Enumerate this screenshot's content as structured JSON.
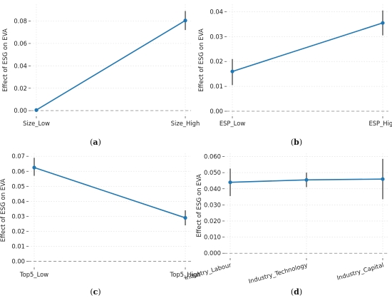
{
  "colors": {
    "line": "#1f77b4",
    "errorbar": "#333333",
    "zero_line": "#888888",
    "grid": "#e4e4e4"
  },
  "chart_data": [
    {
      "type": "line",
      "caption": "a",
      "categories": [
        "Size_Low",
        "Size_High"
      ],
      "values": [
        0.0005,
        0.0805
      ],
      "errors": [
        [
          0.0,
          0.002
        ],
        [
          0.072,
          0.089
        ]
      ],
      "ylabel": "Effect of ESG on EVA",
      "ylim": [
        -0.005,
        0.095
      ],
      "yticks": [
        "0.00",
        "0.02",
        "0.04",
        "0.06",
        "0.08"
      ],
      "reference_line": 0,
      "grid": true
    },
    {
      "type": "line",
      "caption": "b",
      "categories": [
        "ESP_Low",
        "ESP_High"
      ],
      "values": [
        0.016,
        0.0355
      ],
      "errors": [
        [
          0.0105,
          0.021
        ],
        [
          0.0305,
          0.0405
        ]
      ],
      "ylabel": "Effect of ESG on EVA",
      "ylim": [
        -0.002,
        0.043
      ],
      "yticks": [
        "0.00",
        "0.01",
        "0.02",
        "0.03",
        "0.04"
      ],
      "reference_line": 0,
      "grid": true
    },
    {
      "type": "line",
      "caption": "c",
      "categories": [
        "Top5_Low",
        "Top5_High"
      ],
      "values": [
        0.0625,
        0.029
      ],
      "errors": [
        [
          0.057,
          0.069
        ],
        [
          0.024,
          0.034
        ]
      ],
      "ylabel": "Effect of ESG on EVA",
      "ylim": [
        -0.004,
        0.072
      ],
      "yticks": [
        "0.00",
        "0.01",
        "0.02",
        "0.03",
        "0.04",
        "0.05",
        "0.06",
        "0.07"
      ],
      "reference_line": 0,
      "grid": true
    },
    {
      "type": "line",
      "caption": "d",
      "categories": [
        "Industry_Labour",
        "Industry_Technology",
        "Industry_Capital"
      ],
      "values": [
        0.044,
        0.0455,
        0.046
      ],
      "errors": [
        [
          0.0355,
          0.0525
        ],
        [
          0.041,
          0.05
        ],
        [
          0.0335,
          0.0585
        ]
      ],
      "ylabel": "Effect of ESG on EVA",
      "ylim": [
        -0.003,
        0.062
      ],
      "yticks": [
        "0.000",
        "0.010",
        "0.020",
        "0.030",
        "0.040",
        "0.050",
        "0.060"
      ],
      "reference_line": 0,
      "grid": true
    }
  ]
}
